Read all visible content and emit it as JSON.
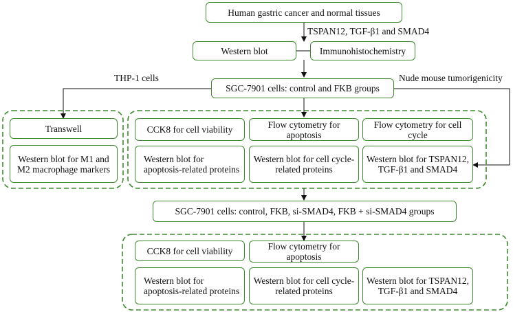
{
  "nodes": {
    "tissues": "Human gastric cancer and normal tissues",
    "western_blot": "Western blot",
    "ihc": "Immunohistochemistry",
    "sgc_2groups": "SGC-7901 cells: control and FKB groups",
    "transwell": "Transwell",
    "wb_m1m2": "Western blot for M1 and M2 macrophage markers",
    "cck8_1": "CCK8 for cell viability",
    "flow_apop_1": "Flow cytometry for apoptosis",
    "flow_cycle": "Flow cytometry for cell cycle",
    "wb_apop_1": "Western blot for apoptosis-related proteins",
    "wb_cycle_1": "Western blot for cell cycle-related proteins",
    "wb_tspan_1": "Western blot for TSPAN12, TGF-β1 and SMAD4",
    "sgc_4groups": "SGC-7901 cells: control, FKB, si-SMAD4, FKB + si-SMAD4 groups",
    "cck8_2": "CCK8 for cell viability",
    "flow_apop_2": "Flow cytometry for apoptosis",
    "wb_apop_2": "Western blot for apoptosis-related proteins",
    "wb_cycle_2": "Western blot for cell cycle-related proteins",
    "wb_tspan_2": "Western blot for TSPAN12, TGF-β1 and SMAD4"
  },
  "edge_labels": {
    "markers": "TSPAN12, TGF-β1 and SMAD4",
    "thp1": "THP-1 cells",
    "nude": "Nude mouse tumorigenicity"
  },
  "colors": {
    "box_border": "#3d8a2e",
    "arrow": "#111111"
  }
}
